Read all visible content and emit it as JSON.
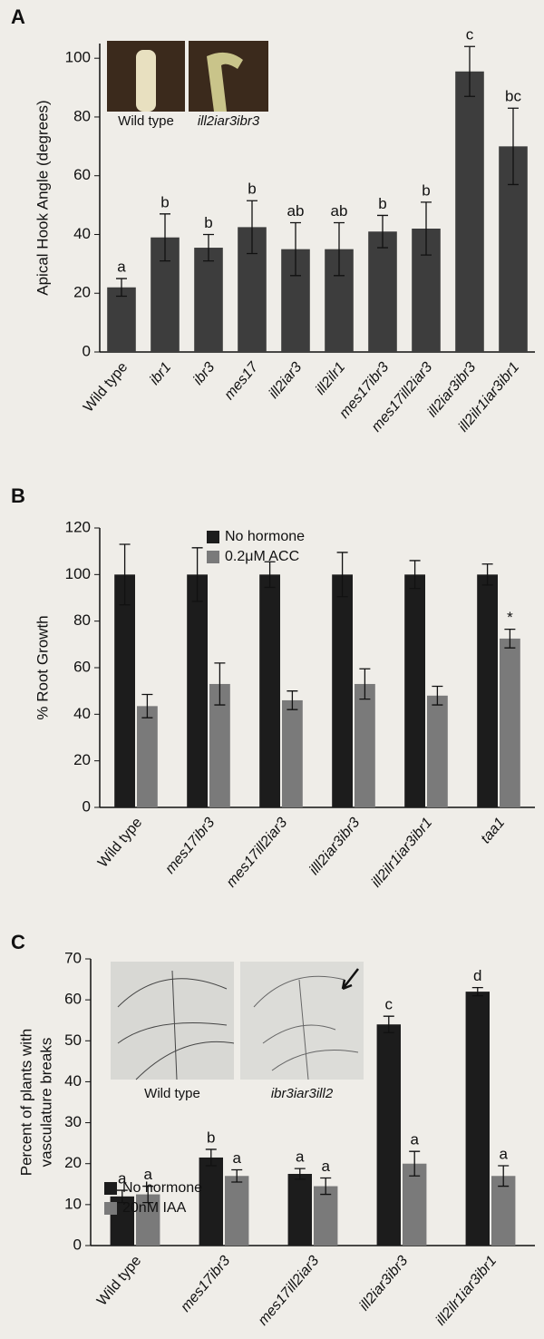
{
  "chart_data": [
    {
      "type": "bar",
      "panel": "A",
      "ylabel": "Apical Hook Angle (degrees)",
      "insets": [
        "Wild type",
        "ill2iar3ibr3"
      ],
      "categories": [
        "Wild type",
        "ibr1",
        "ibr3",
        "mes17",
        "ill2iar3",
        "ill2ilr1",
        "mes17ibr3",
        "mes17ill2iar3",
        "ill2iar3ibr3",
        "ill2ilr1iar3ibr1"
      ],
      "series": [
        {
          "name": null,
          "color": "#3d3d3d",
          "values": [
            22,
            39,
            35.5,
            42.5,
            35,
            35,
            41,
            42,
            95.5,
            70
          ],
          "errors": [
            3,
            8,
            4.5,
            9,
            9,
            9,
            5.5,
            9,
            8.5,
            13
          ],
          "significance_labels": [
            "a",
            "b",
            "b",
            "b",
            "ab",
            "ab",
            "b",
            "b",
            "c",
            "bc"
          ]
        }
      ],
      "ylim": [
        0,
        105
      ],
      "yticks": [
        0,
        20,
        40,
        60,
        80,
        100
      ]
    },
    {
      "type": "bar",
      "panel": "B",
      "ylabel": "% Root Growth",
      "categories": [
        "Wild type",
        "mes17ibr3",
        "mes17ill2iar3",
        "illl2iar3ibr3",
        "ill2ilr1iar3ibr1",
        "taa1"
      ],
      "series": [
        {
          "name": "No hormone",
          "color": "#1c1c1c",
          "values": [
            100,
            100,
            100,
            100,
            100,
            100
          ],
          "errors": [
            13,
            11.5,
            5.5,
            9.5,
            6,
            4.5
          ]
        },
        {
          "name": "0.2μM ACC",
          "color": "#7a7a7a",
          "values": [
            43.5,
            53,
            46,
            53,
            48,
            72.5
          ],
          "errors": [
            5,
            9,
            4,
            6.5,
            4,
            4
          ],
          "significance_labels": [
            null,
            null,
            null,
            null,
            null,
            "*"
          ]
        }
      ],
      "ylim": [
        0,
        120
      ],
      "yticks": [
        0,
        20,
        40,
        60,
        80,
        100,
        120
      ]
    },
    {
      "type": "bar",
      "panel": "C",
      "ylabel": [
        "Percent of plants with",
        "vasculature breaks"
      ],
      "insets": [
        "Wild type",
        "ibr3iar3ill2"
      ],
      "categories": [
        "Wild type",
        "mes17ibr3",
        "mes17ill2iar3",
        "ill2iar3ibr3",
        "ill2ilr1iar3ibr1"
      ],
      "series": [
        {
          "name": "No hormone",
          "color": "#1c1c1c",
          "values": [
            12,
            21.5,
            17.5,
            54,
            62
          ],
          "errors": [
            1.5,
            2,
            1.3,
            2,
            1
          ],
          "significance_labels": [
            "a",
            "b",
            "a",
            "c",
            "d"
          ]
        },
        {
          "name": "20nM IAA",
          "color": "#7a7a7a",
          "values": [
            12.5,
            17,
            14.5,
            20,
            17
          ],
          "errors": [
            2,
            1.5,
            2,
            3,
            2.5
          ],
          "significance_labels": [
            "a",
            "a",
            "a",
            "a",
            "a"
          ]
        }
      ],
      "ylim": [
        0,
        70
      ],
      "yticks": [
        0,
        10,
        20,
        30,
        40,
        50,
        60,
        70
      ]
    }
  ]
}
